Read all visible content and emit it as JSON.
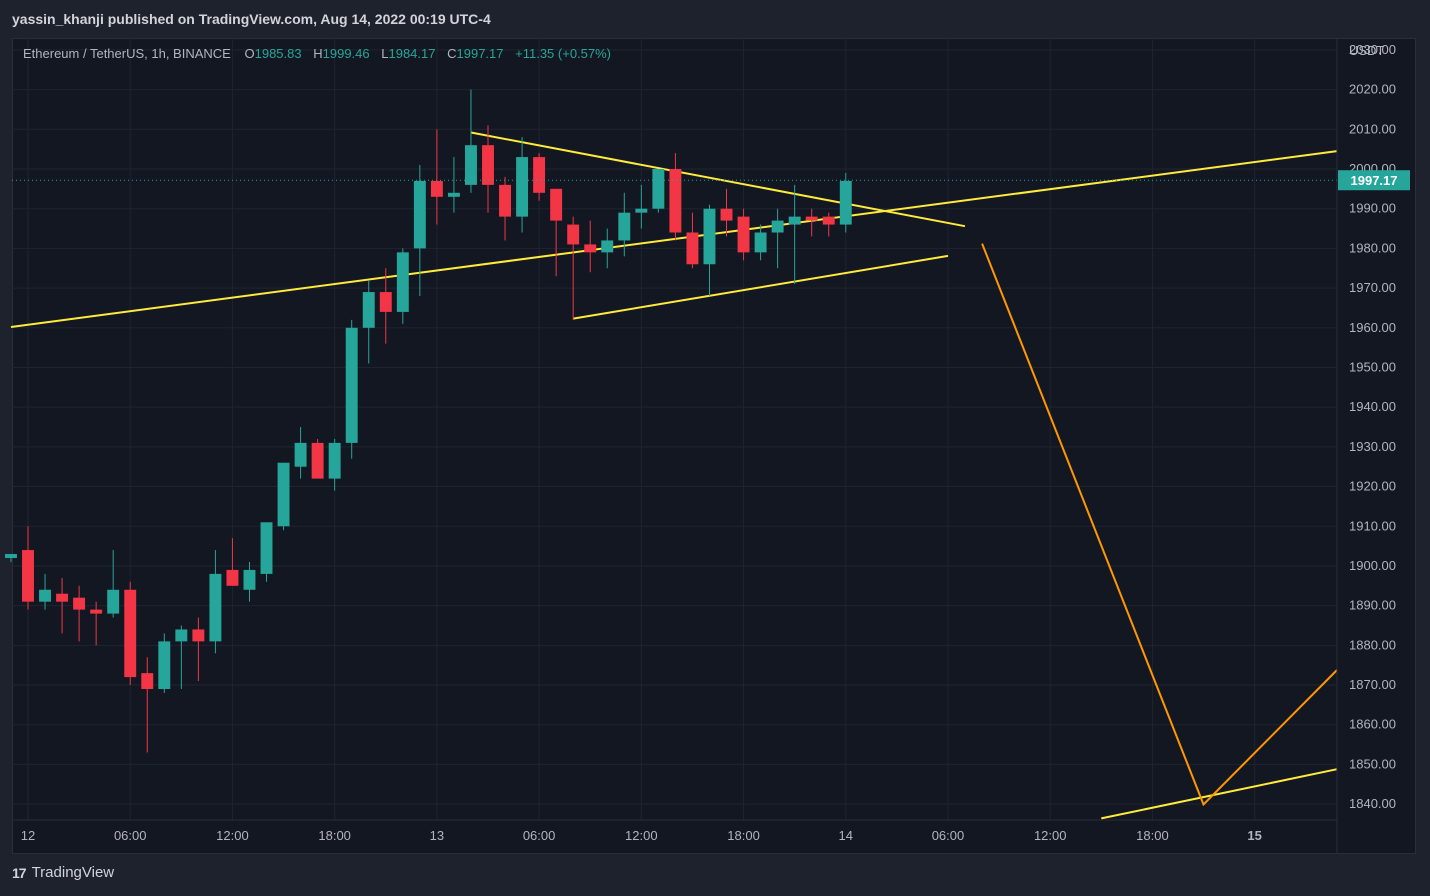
{
  "header": {
    "publisher_line": "yassin_khanji published on TradingView.com, Aug 14, 2022 00:19 UTC-4"
  },
  "legend": {
    "symbol": "Ethereum / TetherUS, 1h, BINANCE",
    "open_label": "O",
    "open": "1985.83",
    "high_label": "H",
    "high": "1999.46",
    "low_label": "L",
    "low": "1984.17",
    "close_label": "C",
    "close": "1997.17",
    "change": "+11.35 (+0.57%)"
  },
  "footer": {
    "brand": "TradingView",
    "logo_glyph": "17"
  },
  "colors": {
    "background": "#131722",
    "grid": "#1f2430",
    "up": "#26a69a",
    "down": "#f23645",
    "trendline": "#ffeb3b",
    "projection": "#ff9800",
    "text": "#b2b5be"
  },
  "chart_data": {
    "type": "candlestick",
    "unit_label": "USDT",
    "current_price_label": "1997.17",
    "current_price": 1997.17,
    "ylim": [
      1836,
      2033
    ],
    "yticks": [
      2030,
      2020,
      2010,
      2000,
      1990,
      1980,
      1970,
      1960,
      1950,
      1940,
      1930,
      1920,
      1910,
      1900,
      1890,
      1880,
      1870,
      1860,
      1850,
      1840
    ],
    "ytick_labels": [
      "2030.00",
      "2020.00",
      "2010.00",
      "2000.00",
      "1990.00",
      "1980.00",
      "1970.00",
      "1960.00",
      "1950.00",
      "1940.00",
      "1930.00",
      "1920.00",
      "1910.00",
      "1900.00",
      "1890.00",
      "1880.00",
      "1870.00",
      "1860.00",
      "1850.00",
      "1840.00"
    ],
    "x_start": "2022-08-12 00:00",
    "x_end": "2022-08-15 04:50",
    "xticks": [
      {
        "label": "12",
        "time": "2022-08-12 00:00",
        "bold": false
      },
      {
        "label": "06:00",
        "time": "2022-08-12 06:00",
        "bold": false
      },
      {
        "label": "12:00",
        "time": "2022-08-12 12:00",
        "bold": false
      },
      {
        "label": "18:00",
        "time": "2022-08-12 18:00",
        "bold": false
      },
      {
        "label": "13",
        "time": "2022-08-13 00:00",
        "bold": false
      },
      {
        "label": "06:00",
        "time": "2022-08-13 06:00",
        "bold": false
      },
      {
        "label": "12:00",
        "time": "2022-08-13 12:00",
        "bold": false
      },
      {
        "label": "18:00",
        "time": "2022-08-13 18:00",
        "bold": false
      },
      {
        "label": "14",
        "time": "2022-08-14 00:00",
        "bold": false
      },
      {
        "label": "06:00",
        "time": "2022-08-14 06:00",
        "bold": false
      },
      {
        "label": "12:00",
        "time": "2022-08-14 12:00",
        "bold": false
      },
      {
        "label": "18:00",
        "time": "2022-08-14 18:00",
        "bold": false
      },
      {
        "label": "15",
        "time": "2022-08-15 00:00",
        "bold": true
      }
    ],
    "candles": [
      {
        "t": "2022-08-11 23:00",
        "o": 1902,
        "h": 1903,
        "l": 1901,
        "c": 1903
      },
      {
        "t": "2022-08-12 00:00",
        "o": 1904,
        "h": 1910,
        "l": 1889,
        "c": 1891
      },
      {
        "t": "2022-08-12 01:00",
        "o": 1891,
        "h": 1898,
        "l": 1889,
        "c": 1894
      },
      {
        "t": "2022-08-12 02:00",
        "o": 1893,
        "h": 1897,
        "l": 1883,
        "c": 1891
      },
      {
        "t": "2022-08-12 03:00",
        "o": 1892,
        "h": 1895,
        "l": 1881,
        "c": 1889
      },
      {
        "t": "2022-08-12 04:00",
        "o": 1889,
        "h": 1891,
        "l": 1880,
        "c": 1888
      },
      {
        "t": "2022-08-12 05:00",
        "o": 1888,
        "h": 1904,
        "l": 1887,
        "c": 1894
      },
      {
        "t": "2022-08-12 06:00",
        "o": 1894,
        "h": 1896,
        "l": 1870,
        "c": 1872
      },
      {
        "t": "2022-08-12 07:00",
        "o": 1873,
        "h": 1877,
        "l": 1853,
        "c": 1869
      },
      {
        "t": "2022-08-12 08:00",
        "o": 1869,
        "h": 1883,
        "l": 1868,
        "c": 1881
      },
      {
        "t": "2022-08-12 09:00",
        "o": 1881,
        "h": 1885,
        "l": 1869,
        "c": 1884
      },
      {
        "t": "2022-08-12 10:00",
        "o": 1884,
        "h": 1887,
        "l": 1871,
        "c": 1881
      },
      {
        "t": "2022-08-12 11:00",
        "o": 1881,
        "h": 1904,
        "l": 1878,
        "c": 1898
      },
      {
        "t": "2022-08-12 12:00",
        "o": 1899,
        "h": 1907,
        "l": 1895,
        "c": 1895
      },
      {
        "t": "2022-08-12 13:00",
        "o": 1894,
        "h": 1901,
        "l": 1891,
        "c": 1899
      },
      {
        "t": "2022-08-12 14:00",
        "o": 1898,
        "h": 1911,
        "l": 1896,
        "c": 1911
      },
      {
        "t": "2022-08-12 15:00",
        "o": 1910,
        "h": 1926,
        "l": 1909,
        "c": 1926
      },
      {
        "t": "2022-08-12 16:00",
        "o": 1925,
        "h": 1935,
        "l": 1922,
        "c": 1931
      },
      {
        "t": "2022-08-12 17:00",
        "o": 1931,
        "h": 1932,
        "l": 1922,
        "c": 1922
      },
      {
        "t": "2022-08-12 18:00",
        "o": 1922,
        "h": 1932,
        "l": 1919,
        "c": 1931
      },
      {
        "t": "2022-08-12 19:00",
        "o": 1931,
        "h": 1962,
        "l": 1927,
        "c": 1960
      },
      {
        "t": "2022-08-12 20:00",
        "o": 1960,
        "h": 1972,
        "l": 1951,
        "c": 1969
      },
      {
        "t": "2022-08-12 21:00",
        "o": 1969,
        "h": 1975,
        "l": 1956,
        "c": 1964
      },
      {
        "t": "2022-08-12 22:00",
        "o": 1964,
        "h": 1980,
        "l": 1961,
        "c": 1979
      },
      {
        "t": "2022-08-12 23:00",
        "o": 1980,
        "h": 2001,
        "l": 1968,
        "c": 1997
      },
      {
        "t": "2022-08-13 00:00",
        "o": 1997,
        "h": 2010,
        "l": 1986,
        "c": 1993
      },
      {
        "t": "2022-08-13 01:00",
        "o": 1993,
        "h": 2003,
        "l": 1989,
        "c": 1994
      },
      {
        "t": "2022-08-13 02:00",
        "o": 1996,
        "h": 2020,
        "l": 1994,
        "c": 2006
      },
      {
        "t": "2022-08-13 03:00",
        "o": 2006,
        "h": 2011,
        "l": 1989,
        "c": 1996
      },
      {
        "t": "2022-08-13 04:00",
        "o": 1996,
        "h": 1998,
        "l": 1982,
        "c": 1988
      },
      {
        "t": "2022-08-13 05:00",
        "o": 1988,
        "h": 2008,
        "l": 1984,
        "c": 2003
      },
      {
        "t": "2022-08-13 06:00",
        "o": 2003,
        "h": 2004,
        "l": 1992,
        "c": 1994
      },
      {
        "t": "2022-08-13 07:00",
        "o": 1995,
        "h": 1995,
        "l": 1973,
        "c": 1987
      },
      {
        "t": "2022-08-13 08:00",
        "o": 1986,
        "h": 1988,
        "l": 1962,
        "c": 1981
      },
      {
        "t": "2022-08-13 09:00",
        "o": 1981,
        "h": 1987,
        "l": 1974,
        "c": 1979
      },
      {
        "t": "2022-08-13 10:00",
        "o": 1979,
        "h": 1985,
        "l": 1975,
        "c": 1982
      },
      {
        "t": "2022-08-13 11:00",
        "o": 1982,
        "h": 1994,
        "l": 1978,
        "c": 1989
      },
      {
        "t": "2022-08-13 12:00",
        "o": 1989,
        "h": 1996,
        "l": 1985,
        "c": 1990
      },
      {
        "t": "2022-08-13 13:00",
        "o": 1990,
        "h": 2000,
        "l": 1989,
        "c": 2000
      },
      {
        "t": "2022-08-13 14:00",
        "o": 2000,
        "h": 2004,
        "l": 1982,
        "c": 1984
      },
      {
        "t": "2022-08-13 15:00",
        "o": 1984,
        "h": 1989,
        "l": 1975,
        "c": 1976
      },
      {
        "t": "2022-08-13 16:00",
        "o": 1976,
        "h": 1991,
        "l": 1968,
        "c": 1990
      },
      {
        "t": "2022-08-13 17:00",
        "o": 1990,
        "h": 1995,
        "l": 1983,
        "c": 1987
      },
      {
        "t": "2022-08-13 18:00",
        "o": 1988,
        "h": 1990,
        "l": 1977,
        "c": 1979
      },
      {
        "t": "2022-08-13 19:00",
        "o": 1979,
        "h": 1986,
        "l": 1977,
        "c": 1984
      },
      {
        "t": "2022-08-13 20:00",
        "o": 1984,
        "h": 1990,
        "l": 1975,
        "c": 1987
      },
      {
        "t": "2022-08-13 21:00",
        "o": 1986,
        "h": 1996,
        "l": 1971,
        "c": 1988
      },
      {
        "t": "2022-08-13 22:00",
        "o": 1988,
        "h": 1990,
        "l": 1983,
        "c": 1987
      },
      {
        "t": "2022-08-13 23:00",
        "o": 1988,
        "h": 1989,
        "l": 1983,
        "c": 1986
      },
      {
        "t": "2022-08-14 00:00",
        "o": 1986,
        "h": 1999,
        "l": 1984,
        "c": 1997
      }
    ],
    "drawings": [
      {
        "name": "channel-upper-line",
        "color": "#ffeb3b",
        "points": [
          [
            "2022-08-11 23:00",
            1960.2
          ],
          [
            "2022-08-15 04:50",
            2004.5
          ]
        ]
      },
      {
        "name": "triangle-top-line",
        "color": "#ffeb3b",
        "points": [
          [
            "2022-08-13 02:00",
            2009.2
          ],
          [
            "2022-08-14 07:00",
            1985.6
          ]
        ]
      },
      {
        "name": "triangle-bottom-line",
        "color": "#ffeb3b",
        "points": [
          [
            "2022-08-13 08:00",
            1962.3
          ],
          [
            "2022-08-14 06:00",
            1978.1
          ]
        ]
      },
      {
        "name": "lower-channel-line",
        "color": "#ffeb3b",
        "points": [
          [
            "2022-08-14 15:00",
            1836.4
          ],
          [
            "2022-08-15 04:50",
            1848.8
          ]
        ]
      },
      {
        "name": "projection-path",
        "color": "#ff9800",
        "points": [
          [
            "2022-08-14 08:00",
            1981.2
          ],
          [
            "2022-08-14 21:00",
            1839.9
          ],
          [
            "2022-08-15 04:50",
            1873.8
          ]
        ]
      }
    ]
  }
}
